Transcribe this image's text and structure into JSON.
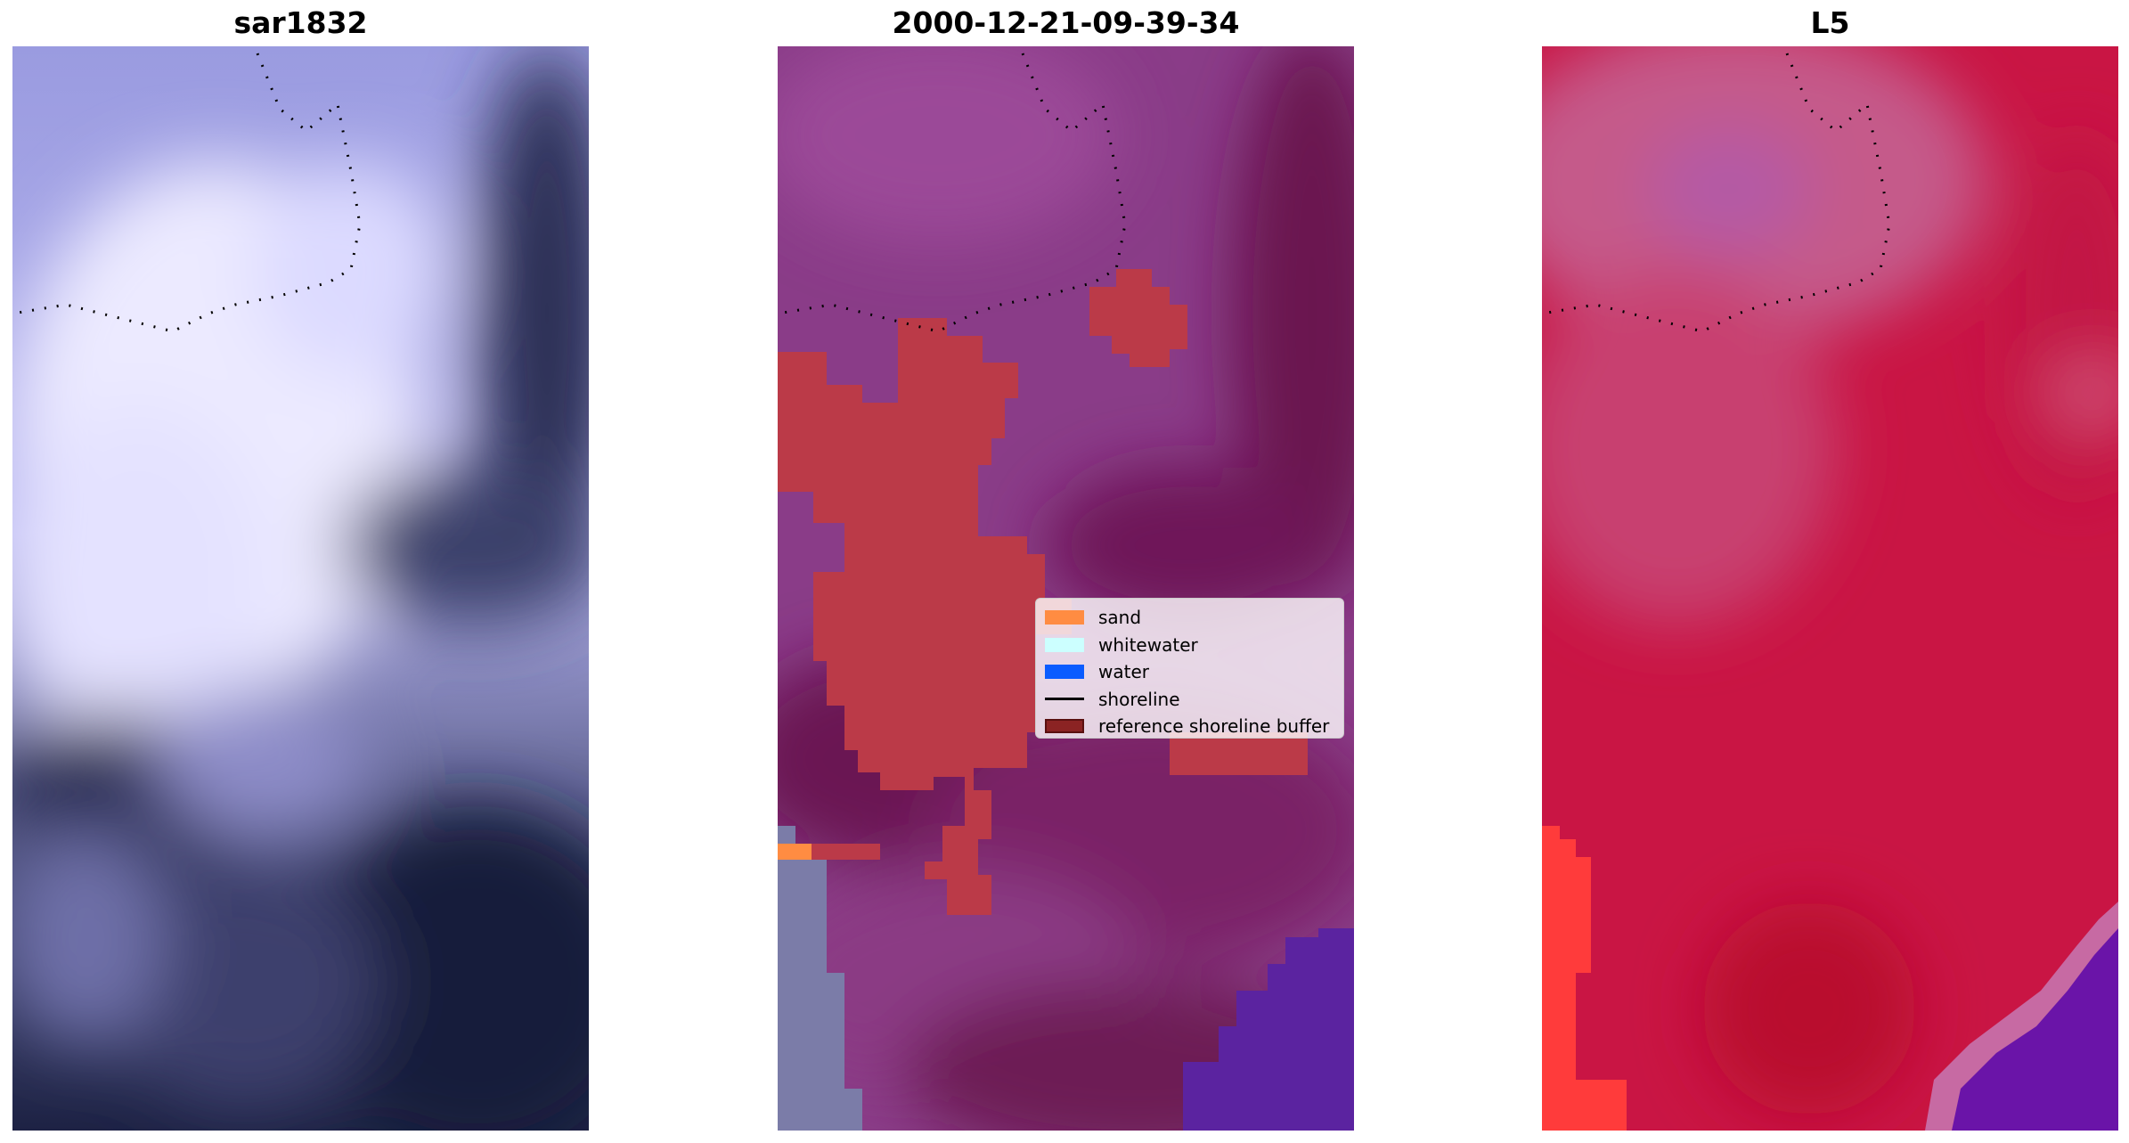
{
  "panels": [
    {
      "title": "sar1832"
    },
    {
      "title": "2000-12-21-09-39-34"
    },
    {
      "title": "L5"
    }
  ],
  "legend": {
    "items": [
      {
        "label": "sand",
        "kind": "patch",
        "color": "#ff8c42"
      },
      {
        "label": "whitewater",
        "kind": "patch",
        "color": "#ccffff"
      },
      {
        "label": "water",
        "kind": "patch",
        "color": "#0a5cff"
      },
      {
        "label": "shoreline",
        "kind": "line",
        "color": "#000000"
      },
      {
        "label": "reference shoreline buffer",
        "kind": "patch",
        "color": "#8b2323",
        "edge": "#5a1010"
      }
    ]
  },
  "colors": {
    "sar_light": "#f2efff",
    "sar_mid": "#a9a6e6",
    "sar_dark": "#14193a",
    "rgb_magenta": "#8a3c88",
    "rgb_dark": "#6b1550",
    "buffer_red": "#bb3a48",
    "water_purple": "#5b23a0",
    "l5_red": "#c91544",
    "l5_pink": "#c55a8a",
    "l5_bright": "#ff3b3b",
    "l5_purple": "#6a14a8"
  }
}
